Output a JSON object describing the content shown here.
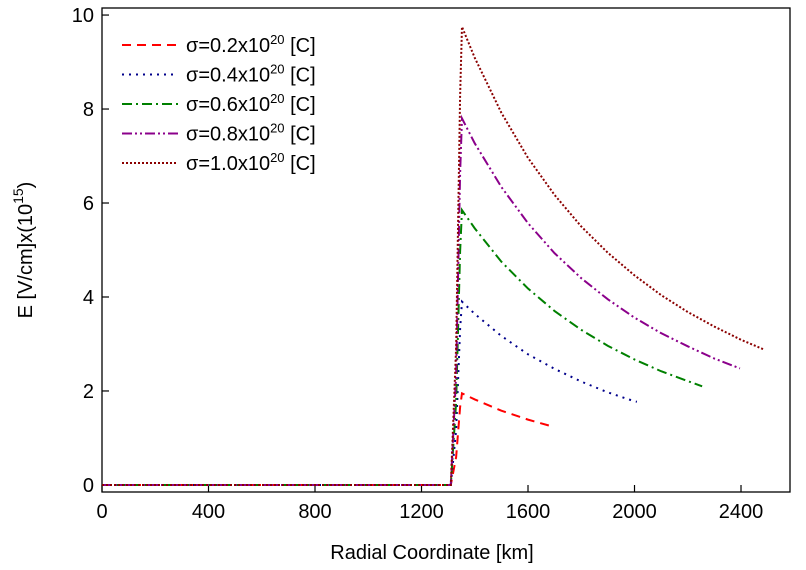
{
  "chart_data": {
    "type": "line",
    "x_label": "Radial Coordinate [km]",
    "y_label": {
      "text": "E [V/cm]x(10",
      "sup": "15",
      "suffix": ")"
    },
    "xlim": [
      0,
      2584
    ],
    "ylim": [
      -0.15,
      10.15
    ],
    "xticks": [
      0,
      400,
      800,
      1200,
      1600,
      2000,
      2400
    ],
    "yticks": [
      0,
      2,
      4,
      6,
      8,
      10
    ],
    "legend": "upper left",
    "series": [
      {
        "name": "σ=0.2x10",
        "name_sup": "20",
        "name_suffix": " [C]",
        "color": "#ff0000",
        "dash": "9,6",
        "x": [
          0,
          1310,
          1330,
          1345,
          1352,
          1400,
          1500,
          1600,
          1694
        ],
        "values": [
          0,
          0,
          0.59,
          1.66,
          1.95,
          1.82,
          1.58,
          1.39,
          1.24
        ]
      },
      {
        "name": "σ=0.4x10",
        "name_sup": "20",
        "name_suffix": " [C]",
        "color": "#00008b",
        "dash": "2,5",
        "x": [
          0,
          1310,
          1330,
          1345,
          1352,
          1400,
          1500,
          1600,
          1700,
          1800,
          1900,
          2000,
          2009
        ],
        "values": [
          0,
          0,
          1.17,
          3.32,
          3.9,
          3.64,
          3.17,
          2.78,
          2.47,
          2.2,
          1.97,
          1.78,
          1.77
        ]
      },
      {
        "name": "σ=0.6x10",
        "name_sup": "20",
        "name_suffix": " [C]",
        "color": "#008000",
        "dash": "10,4,2,4",
        "x": [
          0,
          1310,
          1330,
          1345,
          1352,
          1400,
          1500,
          1600,
          1700,
          1800,
          1900,
          2000,
          2100,
          2200,
          2254
        ],
        "values": [
          0,
          0,
          1.76,
          4.97,
          5.85,
          5.46,
          4.75,
          4.18,
          3.7,
          3.3,
          2.96,
          2.67,
          2.42,
          2.21,
          2.1
        ]
      },
      {
        "name": "σ=0.8x10",
        "name_sup": "20",
        "name_suffix": " [C]",
        "color": "#8b008b",
        "dash": "10,3,2,3,2,3",
        "x": [
          0,
          1310,
          1330,
          1345,
          1352,
          1400,
          1500,
          1600,
          1700,
          1800,
          1900,
          2000,
          2100,
          2200,
          2300,
          2396
        ],
        "values": [
          0,
          0,
          2.34,
          6.63,
          7.8,
          7.27,
          6.34,
          5.57,
          4.93,
          4.4,
          3.95,
          3.56,
          3.23,
          2.95,
          2.69,
          2.48
        ]
      },
      {
        "name": "σ=1.0x10",
        "name_sup": "20",
        "name_suffix": " [C]",
        "color": "#8b0000",
        "dash": "2,2",
        "x": [
          0,
          1310,
          1330,
          1345,
          1352,
          1400,
          1500,
          1600,
          1700,
          1800,
          1900,
          2000,
          2100,
          2200,
          2300,
          2400,
          2483
        ],
        "values": [
          0,
          0,
          2.93,
          8.29,
          9.75,
          9.09,
          7.92,
          6.96,
          6.17,
          5.5,
          4.94,
          4.46,
          4.04,
          3.68,
          3.37,
          3.09,
          2.89
        ]
      }
    ]
  }
}
